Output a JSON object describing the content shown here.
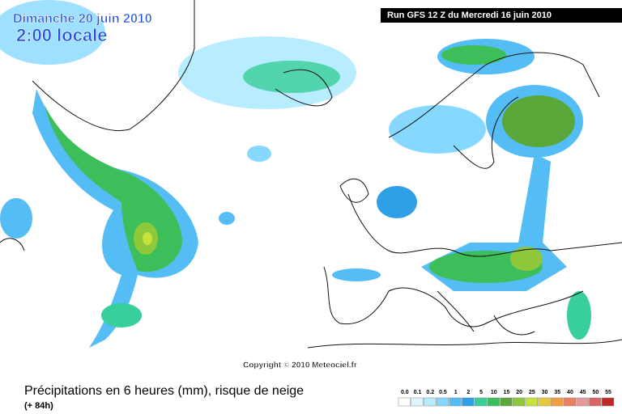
{
  "header": {
    "date": "Dimanche 20 juin 2010",
    "time": "2:00 locale",
    "run": "Run GFS 12 Z du Mercredi 16 juin 2010"
  },
  "copyright": "Copyright © 2010 Meteociel.fr",
  "footer": {
    "title": "Précipitations en 6 heures (mm), risque de neige",
    "lead": "(+ 84h)"
  },
  "legend": [
    {
      "label": "0.0",
      "color": "#ffffff"
    },
    {
      "label": "0.1",
      "color": "#dff6ff"
    },
    {
      "label": "0.2",
      "color": "#b8ecff"
    },
    {
      "label": "0.5",
      "color": "#86d8ff"
    },
    {
      "label": "1",
      "color": "#55bdf5"
    },
    {
      "label": "2",
      "color": "#2f9fe8"
    },
    {
      "label": "5",
      "color": "#38cf9a"
    },
    {
      "label": "10",
      "color": "#3cbf5a"
    },
    {
      "label": "15",
      "color": "#5aa83a"
    },
    {
      "label": "20",
      "color": "#8fc83a"
    },
    {
      "label": "25",
      "color": "#c8e23c"
    },
    {
      "label": "30",
      "color": "#e8c83c"
    },
    {
      "label": "35",
      "color": "#f0a040"
    },
    {
      "label": "40",
      "color": "#ec8060"
    },
    {
      "label": "45",
      "color": "#e49a9a"
    },
    {
      "label": "50",
      "color": "#dc6464"
    },
    {
      "label": "55",
      "color": "#c02828"
    }
  ]
}
